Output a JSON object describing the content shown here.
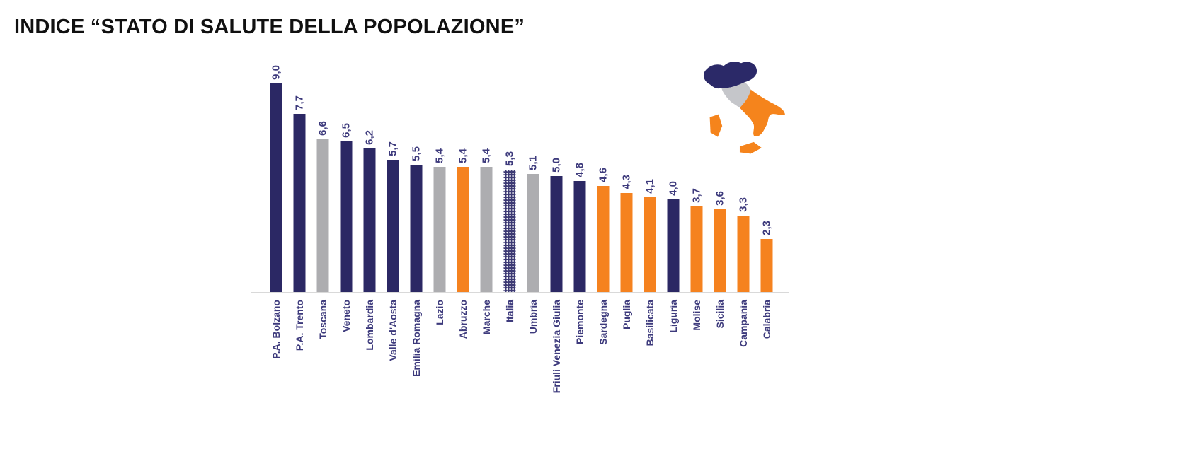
{
  "title": "INDICE “STATO DI SALUTE DELLA POPOLAZIONE”",
  "chart_data": {
    "type": "bar",
    "title": "INDICE “STATO DI SALUTE DELLA POPOLAZIONE”",
    "xlabel": "",
    "ylabel": "",
    "ylim": [
      0,
      9.5
    ],
    "grid": false,
    "legend_position": "none",
    "bar_value_labels_rotated_90ccw": true,
    "category_labels_rotated_90ccw": true,
    "highlighted_category": "Italia",
    "categories": [
      "P.A. Bolzano",
      "P.A. Trento",
      "Toscana",
      "Veneto",
      "Lombardia",
      "Valle d'Aosta",
      "Emilia Romagna",
      "Lazio",
      "Abruzzo",
      "Marche",
      "Italia",
      "Umbria",
      "Friuli Venezia Giulia",
      "Piemonte",
      "Sardegna",
      "Puglia",
      "Basilicata",
      "Liguria",
      "Molise",
      "Sicilia",
      "Campania",
      "Calabria"
    ],
    "values": [
      9.0,
      7.7,
      6.6,
      6.5,
      6.2,
      5.7,
      5.5,
      5.4,
      5.4,
      5.4,
      5.3,
      5.1,
      5.0,
      4.8,
      4.6,
      4.3,
      4.1,
      4.0,
      3.7,
      3.6,
      3.3,
      2.3
    ],
    "value_labels": [
      "9,0",
      "7,7",
      "6,6",
      "6,5",
      "6,2",
      "5,7",
      "5,5",
      "5,4",
      "5,4",
      "5,4",
      "5,3",
      "5,1",
      "5,0",
      "4,8",
      "4,6",
      "4,3",
      "4,1",
      "4,0",
      "3,7",
      "3,6",
      "3,3",
      "2,3"
    ],
    "groups": [
      "north",
      "north",
      "center",
      "north",
      "north",
      "north",
      "north",
      "center",
      "south",
      "center",
      "italia",
      "center",
      "north",
      "north",
      "south",
      "south",
      "south",
      "north",
      "south",
      "south",
      "south",
      "south"
    ],
    "group_colors": {
      "north": "#2B2864",
      "center": "#ADADB0",
      "south": "#F5821F",
      "italia_fill": "#2B2864",
      "italia_pattern": "white-dots"
    },
    "label_color": "#3D3A7C",
    "axis_line_color": "#D9D9D9"
  },
  "map": {
    "name": "italy-macro-areas",
    "north_color": "#2B2968",
    "center_color": "#C5C6CA",
    "south_color": "#F5841C"
  }
}
